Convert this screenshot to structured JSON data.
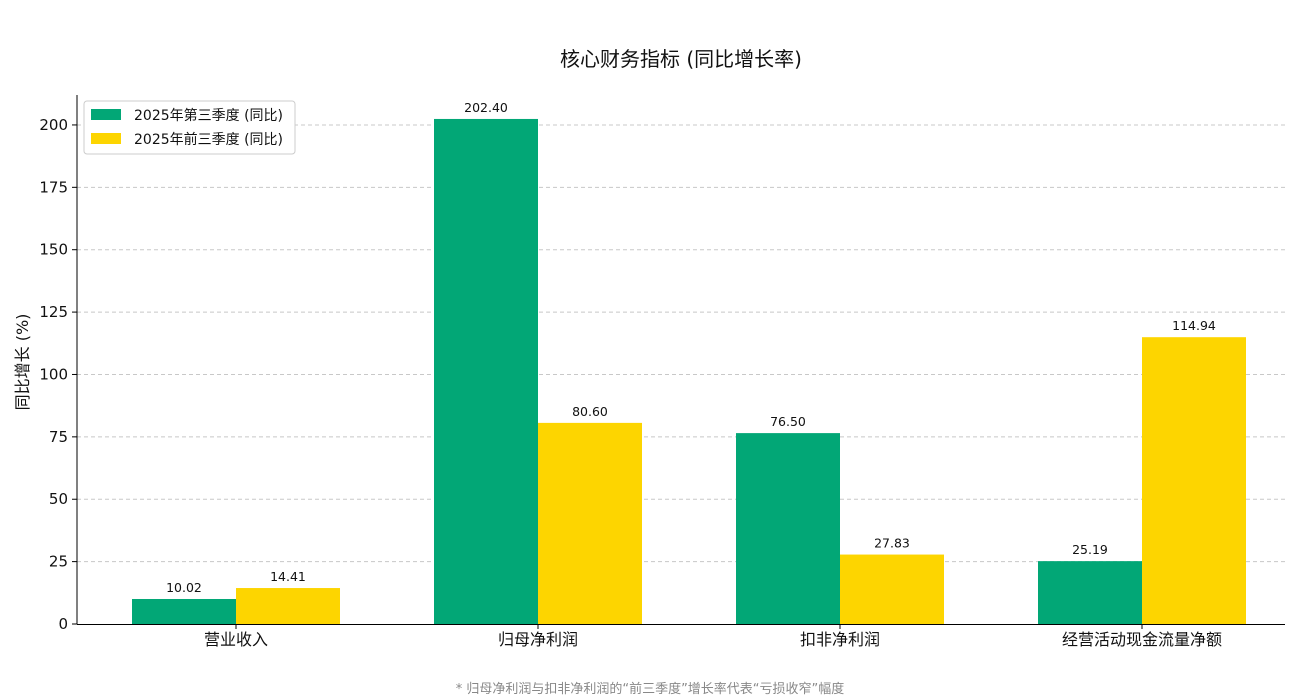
{
  "chart_data": {
    "type": "bar",
    "title": "核心财务指标 (同比增长率)",
    "ylabel": "同比增长 (%)",
    "xlabel": "",
    "categories": [
      "营业收入",
      "归母净利润",
      "扣非净利润",
      "经营活动现金流量净额"
    ],
    "series": [
      {
        "name": "2025年第三季度 (同比)",
        "values": [
          10.02,
          202.4,
          76.5,
          25.19
        ],
        "labels": [
          "10.02",
          "202.40",
          "76.50",
          "25.19"
        ],
        "color": "#02A776"
      },
      {
        "name": "2025年前三季度 (同比)",
        "values": [
          14.41,
          80.6,
          27.83,
          114.94
        ],
        "labels": [
          "14.41",
          "80.60",
          "27.83",
          "114.94"
        ],
        "color": "#FDD500"
      }
    ],
    "ylim": [
      0,
      212
    ],
    "yticks": [
      0,
      25,
      50,
      75,
      100,
      125,
      150,
      175,
      200
    ],
    "grid": true,
    "legend": "top-left"
  },
  "footnote": "* 归母净利润与扣非净利润的“前三季度”增长率代表“亏损收窄”幅度"
}
